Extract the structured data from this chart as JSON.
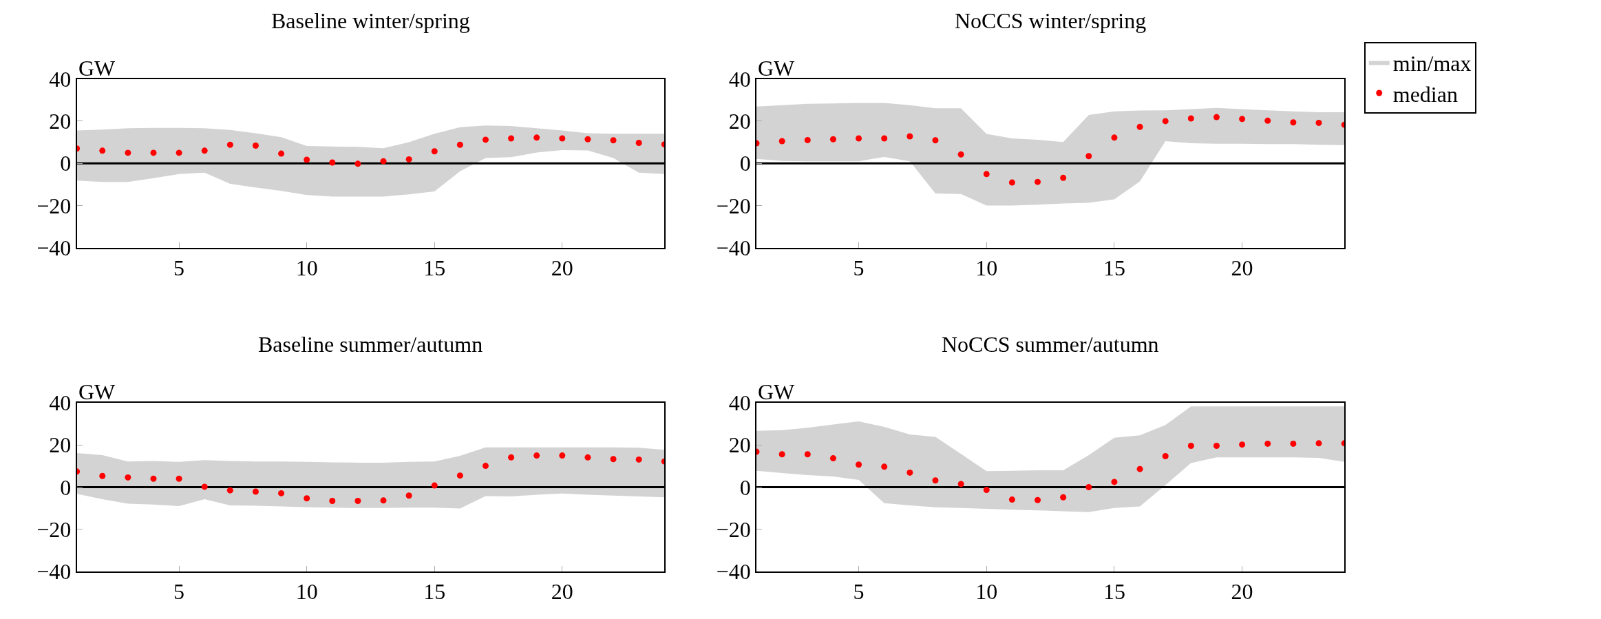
{
  "chart_data": [
    {
      "type": "scatter",
      "title": "Baseline winter/spring",
      "ylabel": "GW",
      "x": [
        1,
        2,
        3,
        4,
        5,
        6,
        7,
        8,
        9,
        10,
        11,
        12,
        13,
        14,
        15,
        16,
        17,
        18,
        19,
        20,
        21,
        22,
        23,
        24
      ],
      "xlim": [
        1,
        24
      ],
      "xticks": [
        5,
        10,
        15,
        20
      ],
      "ylim": [
        -40,
        40
      ],
      "yticks": [
        -40,
        -20,
        0,
        20,
        40
      ],
      "legend": false,
      "ref_lines": [
        {
          "axis": "y",
          "value": 0,
          "color": "#000000"
        }
      ],
      "series": [
        {
          "color": "#d3d3d3",
          "values": [
            null,
            null,
            null,
            null,
            null,
            null,
            null,
            null,
            null,
            null,
            null,
            null,
            null,
            null,
            null,
            null,
            null,
            null,
            null,
            null,
            null,
            null,
            null,
            null
          ],
          "lower": [
            -8.2,
            -8.8,
            -8.8,
            -7,
            -5.1,
            -4.4,
            -9.7,
            -11.4,
            -13.1,
            -15,
            -15.8,
            -15.8,
            -15.8,
            -14.7,
            -13.3,
            -3.8,
            2.5,
            2.9,
            5.1,
            6.3,
            6.1,
            2.5,
            -4.4,
            -5.1
          ],
          "upper": [
            15.6,
            16,
            16.6,
            16.8,
            16.8,
            16.6,
            15.8,
            14.3,
            12.4,
            8.2,
            8,
            7.8,
            7.2,
            10,
            14,
            17.1,
            17.9,
            17.7,
            16.6,
            15.6,
            14.3,
            14,
            14,
            14
          ]
        },
        {
          "marker": "circle",
          "color": "#ff0000",
          "values": [
            7,
            6,
            5,
            5,
            5,
            6,
            8.8,
            8.4,
            4.6,
            1.7,
            0.4,
            -0.2,
            1,
            1.9,
            5.7,
            8.8,
            11.2,
            11.8,
            12.2,
            11.8,
            11.4,
            10.9,
            9.7,
            9
          ]
        }
      ]
    },
    {
      "type": "scatter",
      "title": "NoCCS winter/spring",
      "ylabel": "GW",
      "x": [
        1,
        2,
        3,
        4,
        5,
        6,
        7,
        8,
        9,
        10,
        11,
        12,
        13,
        14,
        15,
        16,
        17,
        18,
        19,
        20,
        21,
        22,
        23,
        24
      ],
      "xlim": [
        1,
        24
      ],
      "xticks": [
        5,
        10,
        15,
        20
      ],
      "ylim": [
        -40,
        40
      ],
      "yticks": [
        -40,
        -20,
        0,
        20,
        40
      ],
      "legend": "right",
      "ref_lines": [
        {
          "axis": "y",
          "value": 0,
          "color": "#000000"
        }
      ],
      "series": [
        {
          "name": "min/max",
          "color": "#d3d3d3",
          "values": [
            null,
            null,
            null,
            null,
            null,
            null,
            null,
            null,
            null,
            null,
            null,
            null,
            null,
            null,
            null,
            null,
            null,
            null,
            null,
            null,
            null,
            null,
            null,
            null
          ],
          "lower": [
            2.1,
            1.1,
            1,
            1,
            1,
            3,
            1,
            -14.3,
            -14.5,
            -20,
            -20,
            -19.6,
            -19,
            -18.7,
            -17.1,
            -8.6,
            10.5,
            9.5,
            9.3,
            9.3,
            9.1,
            9.1,
            8.8,
            8.6
          ],
          "upper": [
            26.9,
            27.6,
            28.2,
            28.4,
            28.6,
            28.6,
            27.6,
            26.1,
            26.1,
            13.9,
            11.8,
            11.2,
            10.1,
            22.9,
            24.6,
            25,
            25.1,
            25.7,
            26.3,
            25.7,
            25.1,
            24.6,
            24.2,
            24.2
          ]
        },
        {
          "name": "median",
          "marker": "circle",
          "color": "#ff0000",
          "values": [
            9.5,
            10.5,
            11,
            11.4,
            11.8,
            11.8,
            12.8,
            10.9,
            4.2,
            -5.1,
            -9.1,
            -8.8,
            -6.9,
            3.4,
            12.2,
            17.3,
            20,
            21.3,
            21.9,
            21,
            20.2,
            19.4,
            19.2,
            18.3
          ]
        }
      ]
    },
    {
      "type": "scatter",
      "title": "Baseline summer/autumn",
      "ylabel": "GW",
      "x": [
        1,
        2,
        3,
        4,
        5,
        6,
        7,
        8,
        9,
        10,
        11,
        12,
        13,
        14,
        15,
        16,
        17,
        18,
        19,
        20,
        21,
        22,
        23,
        24
      ],
      "xlim": [
        1,
        24
      ],
      "xticks": [
        5,
        10,
        15,
        20
      ],
      "ylim": [
        -40,
        40
      ],
      "yticks": [
        -40,
        -20,
        0,
        20,
        40
      ],
      "legend": false,
      "ref_lines": [
        {
          "axis": "y",
          "value": 0,
          "color": "#000000"
        }
      ],
      "series": [
        {
          "color": "#d3d3d3",
          "values": [
            null,
            null,
            null,
            null,
            null,
            null,
            null,
            null,
            null,
            null,
            null,
            null,
            null,
            null,
            null,
            null,
            null,
            null,
            null,
            null,
            null,
            null,
            null,
            null
          ],
          "lower": [
            -3.2,
            -5.7,
            -7.8,
            -8.2,
            -9,
            -5.7,
            -8.6,
            -8.8,
            -9.1,
            -9.5,
            -9.7,
            -9.9,
            -9.9,
            -9.7,
            -9.7,
            -10.1,
            -4.2,
            -4.4,
            -3.6,
            -3,
            -3.6,
            -4,
            -4.4,
            -4.8
          ],
          "upper": [
            16.2,
            15.2,
            12.2,
            12.4,
            12,
            12.8,
            12.4,
            12.2,
            12.2,
            12,
            11.8,
            11.6,
            11.6,
            12,
            12.2,
            14.9,
            18.9,
            18.9,
            18.9,
            18.9,
            18.9,
            18.9,
            18.7,
            17.7
          ]
        },
        {
          "marker": "circle",
          "color": "#ff0000",
          "values": [
            7.4,
            5.3,
            4.6,
            4,
            4,
            0.2,
            -1.5,
            -2.1,
            -2.9,
            -5.3,
            -6.5,
            -6.5,
            -6.3,
            -4,
            0.8,
            5.5,
            10.1,
            14.1,
            15,
            15,
            14.1,
            13.3,
            13.1,
            12.2
          ]
        }
      ]
    },
    {
      "type": "scatter",
      "title": "NoCCS summer/autumn",
      "ylabel": "GW",
      "x": [
        1,
        2,
        3,
        4,
        5,
        6,
        7,
        8,
        9,
        10,
        11,
        12,
        13,
        14,
        15,
        16,
        17,
        18,
        19,
        20,
        21,
        22,
        23,
        24
      ],
      "xlim": [
        1,
        24
      ],
      "xticks": [
        5,
        10,
        15,
        20
      ],
      "ylim": [
        -40,
        40
      ],
      "yticks": [
        -40,
        -20,
        0,
        20,
        40
      ],
      "legend": false,
      "ref_lines": [
        {
          "axis": "y",
          "value": 0,
          "color": "#000000"
        }
      ],
      "series": [
        {
          "color": "#d3d3d3",
          "values": [
            null,
            null,
            null,
            null,
            null,
            null,
            null,
            null,
            null,
            null,
            null,
            null,
            null,
            null,
            null,
            null,
            null,
            null,
            null,
            null,
            null,
            null,
            null,
            null
          ],
          "lower": [
            7.8,
            6.7,
            5.7,
            5.1,
            3.4,
            -7.6,
            -8.6,
            -9.5,
            -9.9,
            -10.3,
            -10.7,
            -11,
            -11.4,
            -11.8,
            -9.9,
            -9.1,
            1,
            11.4,
            14.1,
            14.1,
            14.1,
            14.1,
            13.9,
            12
          ],
          "upper": [
            26.7,
            27,
            28.2,
            29.7,
            31.2,
            28.6,
            25,
            23.8,
            15.8,
            7.6,
            7.8,
            8,
            8,
            15.2,
            23.4,
            24.6,
            29.5,
            38.3,
            38.3,
            38.3,
            38.3,
            38.3,
            38.3,
            38.3
          ]
        },
        {
          "marker": "circle",
          "color": "#ff0000",
          "values": [
            16.8,
            15.6,
            15.6,
            13.7,
            10.7,
            9.7,
            6.9,
            3.2,
            1.5,
            -1.3,
            -5.9,
            -6.1,
            -4.8,
            0,
            2.5,
            8.6,
            14.7,
            19.6,
            19.6,
            20.2,
            20.6,
            20.6,
            20.8,
            20.8
          ]
        }
      ]
    }
  ]
}
